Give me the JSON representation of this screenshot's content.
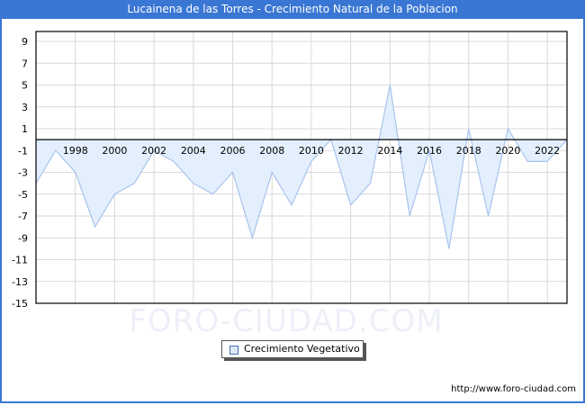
{
  "title": "Lucainena de las Torres - Crecimiento Natural de la Poblacion",
  "watermark": "FORO-CIUDAD.COM",
  "source": "http://www.foro-ciudad.com",
  "legend": {
    "label": "Crecimiento Vegetativo",
    "swatch_color": "#dde8f8",
    "line_color": "#a8c4ee"
  },
  "colors": {
    "title_bg": "#3a77d4",
    "fill": "#e3effc",
    "line": "#a8c4ee",
    "grid": "#d9d9d9"
  },
  "chart_data": {
    "type": "area",
    "title": "Lucainena de las Torres - Crecimiento Natural de la Poblacion",
    "xlabel": "",
    "ylabel": "",
    "x": [
      1996,
      1997,
      1998,
      1999,
      2000,
      2001,
      2002,
      2003,
      2004,
      2005,
      2006,
      2007,
      2008,
      2009,
      2010,
      2011,
      2012,
      2013,
      2014,
      2015,
      2016,
      2017,
      2018,
      2019,
      2020,
      2021,
      2022,
      2023
    ],
    "series": [
      {
        "name": "Crecimiento Vegetativo",
        "values": [
          -4,
          -1,
          -3,
          -8,
          -5,
          -4,
          -1,
          -2,
          -4,
          -5,
          -3,
          -9,
          -3,
          -6,
          -2,
          0,
          -6,
          -4,
          5,
          -7,
          -1,
          -10,
          1,
          -7,
          1,
          -2,
          -2,
          0
        ]
      }
    ],
    "ylim": [
      -15,
      10
    ],
    "yticks": [
      9,
      7,
      5,
      3,
      1,
      -1,
      -3,
      -5,
      -7,
      -9,
      -11,
      -13,
      -15
    ],
    "xticks": [
      1998,
      2000,
      2002,
      2004,
      2006,
      2008,
      2010,
      2012,
      2014,
      2016,
      2018,
      2020,
      2022
    ],
    "grid": true,
    "legend_position": "bottom"
  }
}
